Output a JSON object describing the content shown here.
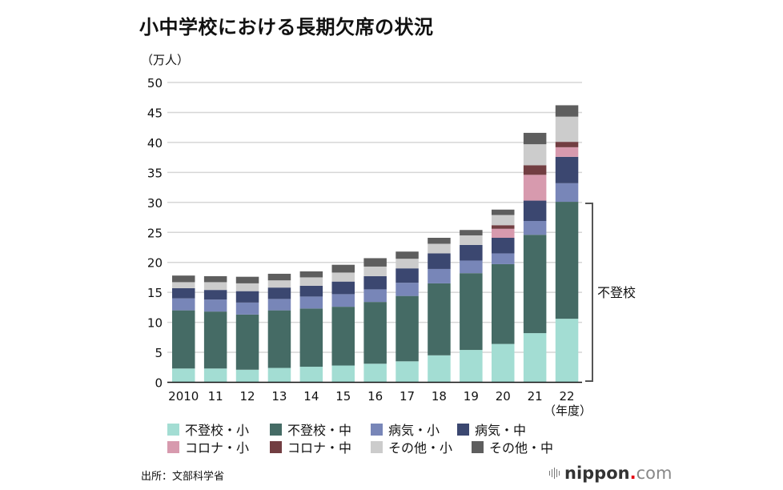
{
  "chart_data": {
    "type": "bar",
    "stacked": true,
    "title": "小中学校における長期欠席の状況",
    "ylabel": "（万人）",
    "xlabel": "（年度）",
    "ylim": [
      0,
      50
    ],
    "yticks": [
      0,
      5,
      10,
      15,
      20,
      25,
      30,
      35,
      40,
      45,
      50
    ],
    "grid": true,
    "legend_position": "bottom",
    "categories": [
      "2010",
      "11",
      "12",
      "13",
      "14",
      "15",
      "16",
      "17",
      "18",
      "19",
      "20",
      "21",
      "22"
    ],
    "series": [
      {
        "name": "不登校・小",
        "color": "#a3ddd3",
        "values": [
          2.3,
          2.3,
          2.1,
          2.4,
          2.6,
          2.8,
          3.1,
          3.5,
          4.5,
          5.4,
          6.4,
          8.2,
          10.6
        ]
      },
      {
        "name": "不登校・中",
        "color": "#456b65",
        "values": [
          9.7,
          9.5,
          9.2,
          9.6,
          9.7,
          9.8,
          10.3,
          10.9,
          12.0,
          12.8,
          13.3,
          16.4,
          19.5
        ]
      },
      {
        "name": "病気・小",
        "color": "#7886b8",
        "values": [
          2.0,
          2.0,
          2.0,
          1.9,
          2.0,
          2.1,
          2.1,
          2.2,
          2.4,
          2.1,
          1.8,
          2.3,
          3.1
        ]
      },
      {
        "name": "病気・中",
        "color": "#3b4770",
        "values": [
          1.7,
          1.6,
          1.9,
          1.9,
          1.8,
          2.1,
          2.2,
          2.4,
          2.6,
          2.6,
          2.6,
          3.4,
          4.4
        ]
      },
      {
        "name": "コロナ・小",
        "color": "#d79aae",
        "values": [
          0,
          0,
          0,
          0,
          0,
          0,
          0,
          0,
          0,
          0,
          1.5,
          4.3,
          1.6
        ]
      },
      {
        "name": "コロナ・中",
        "color": "#723e42",
        "values": [
          0,
          0,
          0,
          0,
          0,
          0,
          0,
          0,
          0,
          0,
          0.6,
          1.6,
          0.9
        ]
      },
      {
        "name": "その他・小",
        "color": "#cccccc",
        "values": [
          1.0,
          1.3,
          1.3,
          1.2,
          1.4,
          1.5,
          1.6,
          1.6,
          1.6,
          1.6,
          1.7,
          3.5,
          4.2
        ]
      },
      {
        "name": "その他・中",
        "color": "#5e5e5e",
        "values": [
          1.1,
          1.0,
          1.1,
          1.1,
          1.0,
          1.3,
          1.4,
          1.2,
          1.0,
          0.9,
          0.9,
          1.9,
          1.9
        ]
      }
    ],
    "annotations": [
      {
        "text": "不登校",
        "spans_series": [
          "不登校・小",
          "不登校・中"
        ],
        "category": "22"
      }
    ],
    "source": "出所：文部科学省"
  },
  "brand": {
    "name": "nippon",
    "dot": ".",
    "tld": "com"
  }
}
